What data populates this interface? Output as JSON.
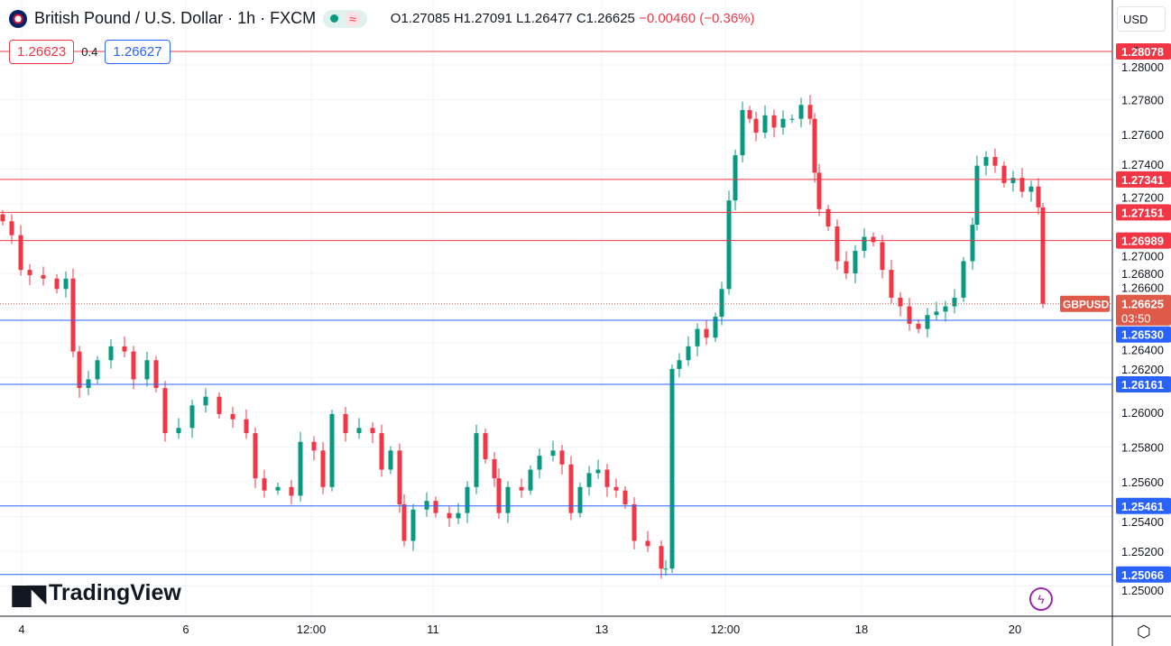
{
  "header": {
    "symbol_title": "British Pound / U.S. Dollar · 1h · FXCM",
    "status_icon": "market-open-dot",
    "delay_icon": "approx-wave",
    "open": "O1.27085",
    "high": "H1.27091",
    "low": "L1.26477",
    "close": "C1.26625",
    "change": "−0.00460 (−0.36%)"
  },
  "trade": {
    "sell": "1.26623",
    "spread": "0.4",
    "buy": "1.26627"
  },
  "currency": "USD",
  "branding": "TradingView",
  "colors": {
    "up": "#089981",
    "down": "#f23645",
    "resistance": "#f23645",
    "support": "#2962ff",
    "grid": "#f0f3fa"
  },
  "chart_data": {
    "type": "candlestick",
    "symbol": "GBPUSD",
    "ylim": [
      1.2492,
      1.282
    ],
    "y_ticks": [
      "1.28000",
      "1.27800",
      "1.27600",
      "1.27400",
      "1.27200",
      "1.27000",
      "1.26800",
      "1.26600",
      "1.26400",
      "1.26200",
      "1.26000",
      "1.25800",
      "1.25600",
      "1.25400",
      "1.25200",
      "1.25000"
    ],
    "x_ticks": [
      "4",
      "6",
      "12:00",
      "11",
      "13",
      "12:00",
      "18",
      "20"
    ],
    "closes": [
      1.271,
      1.2702,
      1.2682,
      1.2679,
      1.2677,
      1.2671,
      1.2677,
      1.2635,
      1.2614,
      1.2619,
      1.263,
      1.2638,
      1.2635,
      1.2619,
      1.263,
      1.2614,
      1.2588,
      1.2591,
      1.2604,
      1.2609,
      1.2599,
      1.2596,
      1.2588,
      1.2562,
      1.2555,
      1.2557,
      1.2552,
      1.2583,
      1.2578,
      1.2557,
      1.2599,
      1.2588,
      1.2591,
      1.2588,
      1.2567,
      1.2578,
      1.2547,
      1.2526,
      1.2544,
      1.2549,
      1.2542,
      1.2539,
      1.2542,
      1.2557,
      1.2588,
      1.2573,
      1.2562,
      1.2542,
      1.2557,
      1.2555,
      1.2567,
      1.2575,
      1.2578,
      1.257,
      1.2542,
      1.2557,
      1.2565,
      1.2567,
      1.2557,
      1.2555,
      1.2547,
      1.2526,
      1.2523,
      1.251,
      1.251,
      1.2625,
      1.263,
      1.2638,
      1.2648,
      1.2643,
      1.2655,
      1.2671,
      1.2722,
      1.2748,
      1.2774,
      1.2769,
      1.2761,
      1.2771,
      1.2764,
      1.2769,
      1.2769,
      1.2777,
      1.2769,
      1.2738,
      1.2717,
      1.2707,
      1.2687,
      1.268,
      1.2693,
      1.2701,
      1.2698,
      1.2682,
      1.2666,
      1.2661,
      1.2651,
      1.2648,
      1.2656,
      1.2658,
      1.2661,
      1.2666,
      1.2687,
      1.2708,
      1.2742,
      1.2747,
      1.2742,
      1.2732,
      1.2735,
      1.2727,
      1.273,
      1.2718,
      1.26625
    ],
    "resistance_levels": [
      "1.28078",
      "1.27341",
      "1.27151",
      "1.26989"
    ],
    "support_levels": [
      "1.26530",
      "1.26161",
      "1.25461",
      "1.25066"
    ],
    "last_price": "1.26625",
    "countdown": "03:50"
  }
}
